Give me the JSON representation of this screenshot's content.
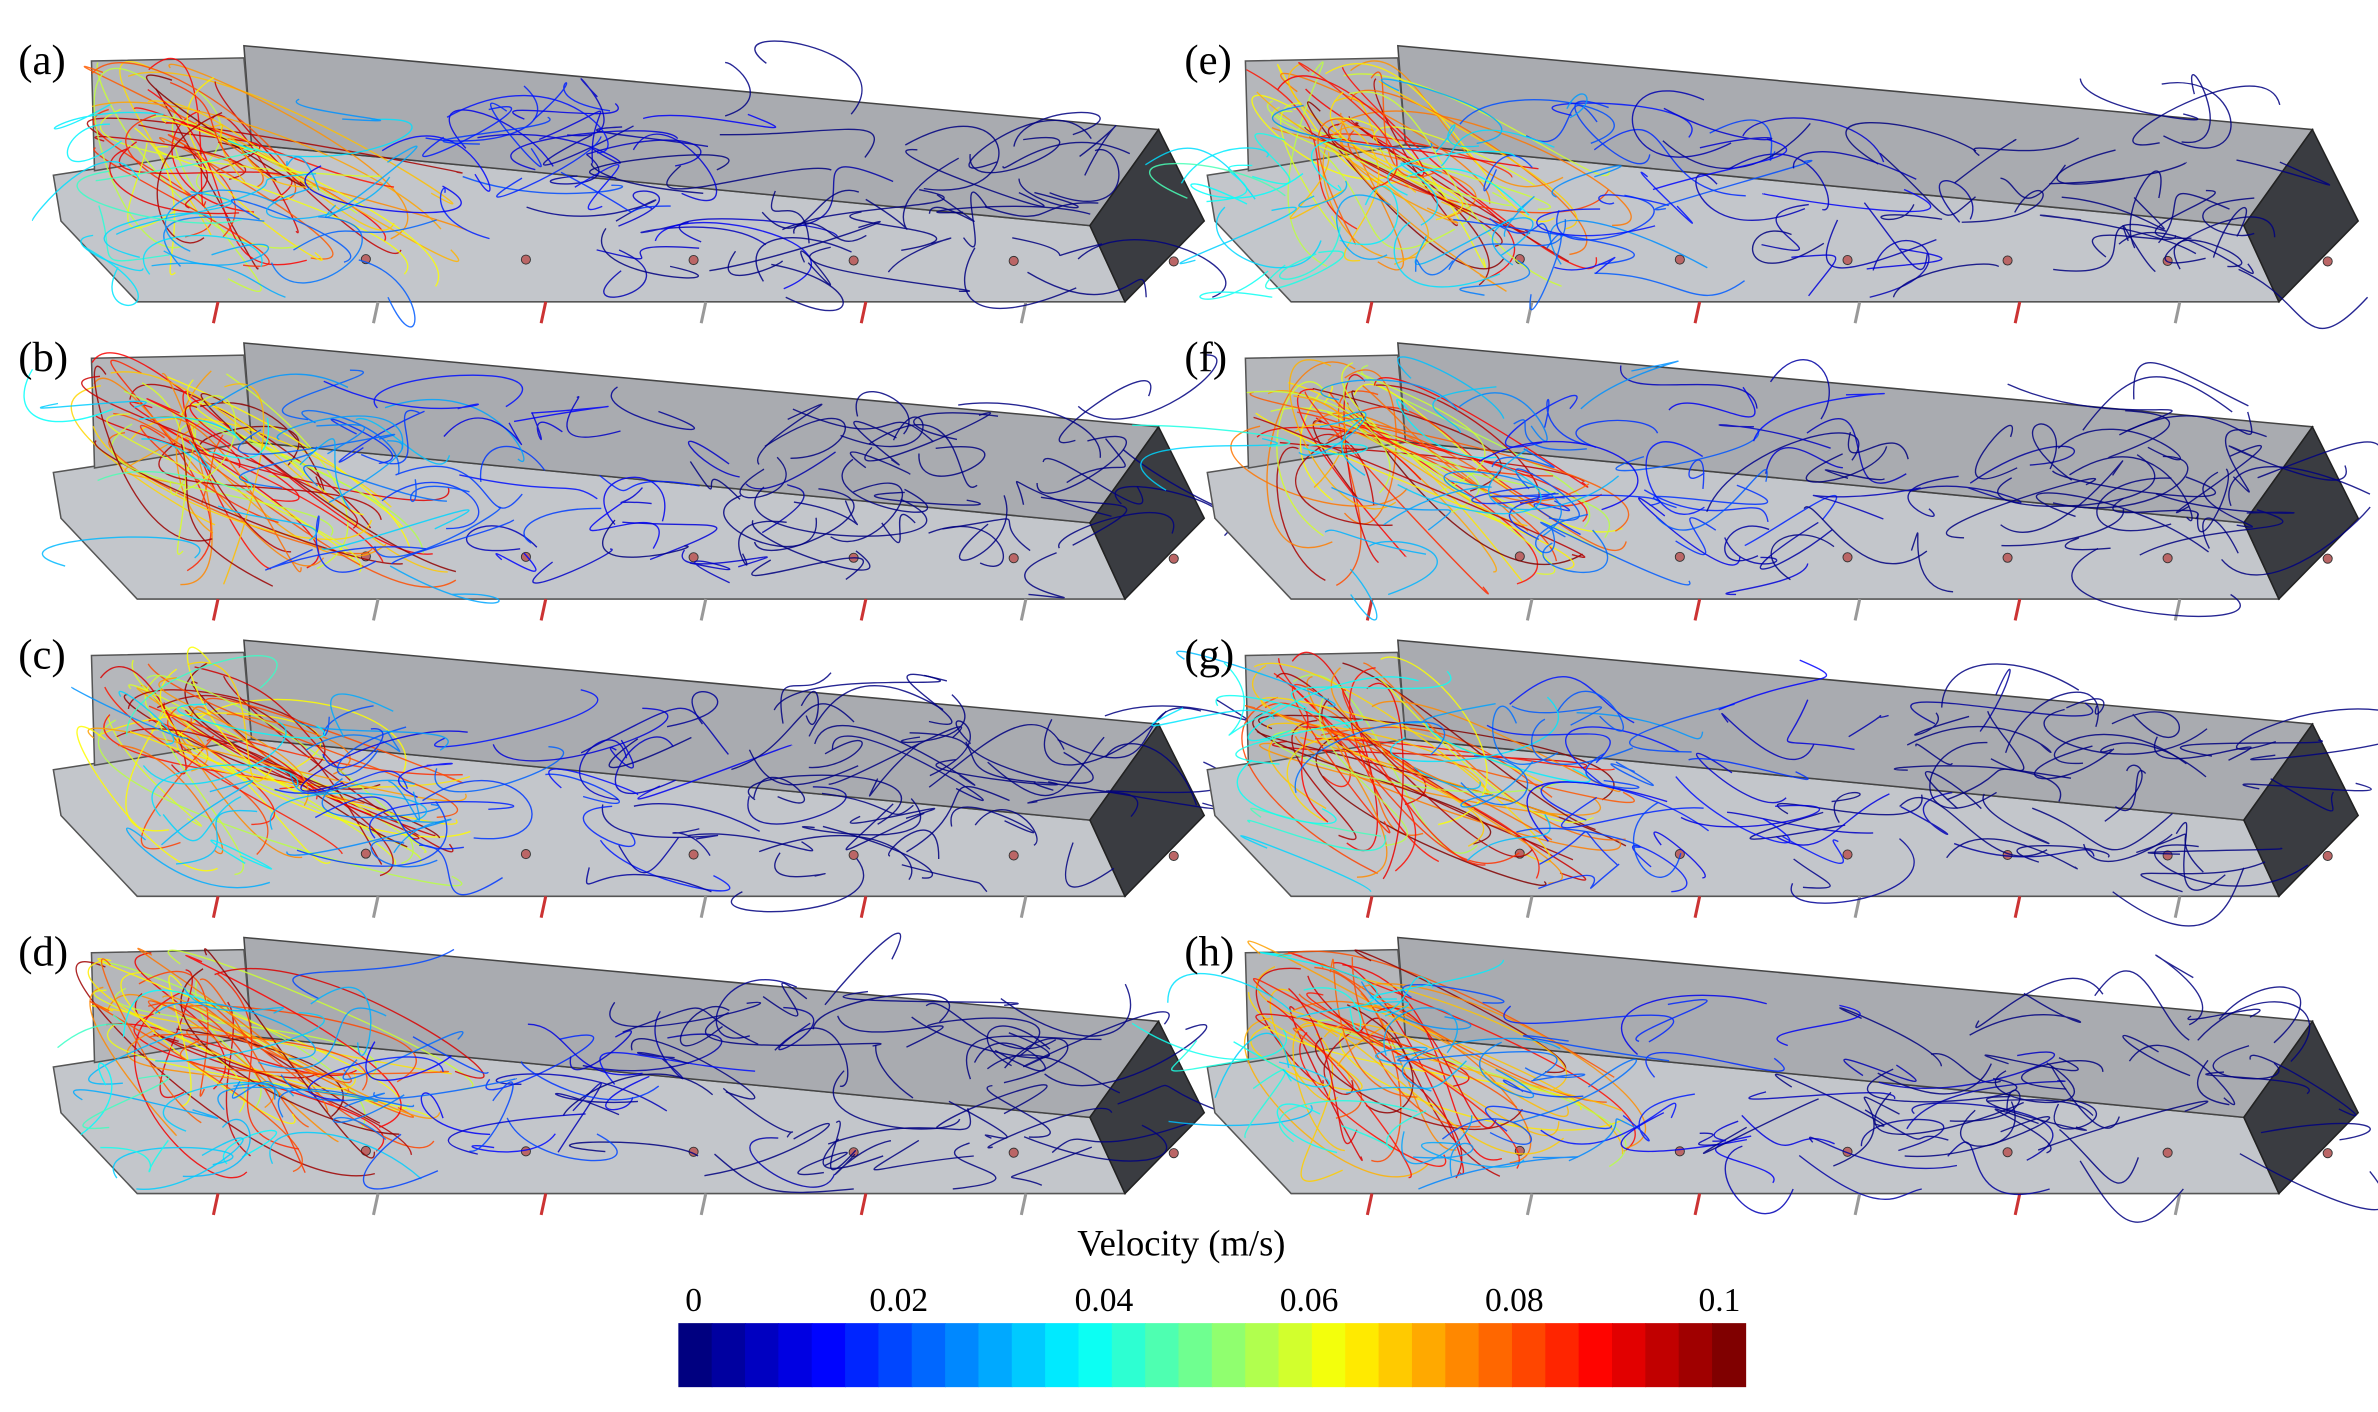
{
  "panels": [
    {
      "label": "(a)"
    },
    {
      "label": "(b)"
    },
    {
      "label": "(c)"
    },
    {
      "label": "(d)"
    },
    {
      "label": "(e)"
    },
    {
      "label": "(f)"
    },
    {
      "label": "(g)"
    },
    {
      "label": "(h)"
    }
  ],
  "colorbar": {
    "title": "Velocity (m/s)",
    "lim": [
      0,
      0.1
    ],
    "ticks": [
      0,
      0.02,
      0.04,
      0.06,
      0.08,
      0.1
    ]
  }
}
